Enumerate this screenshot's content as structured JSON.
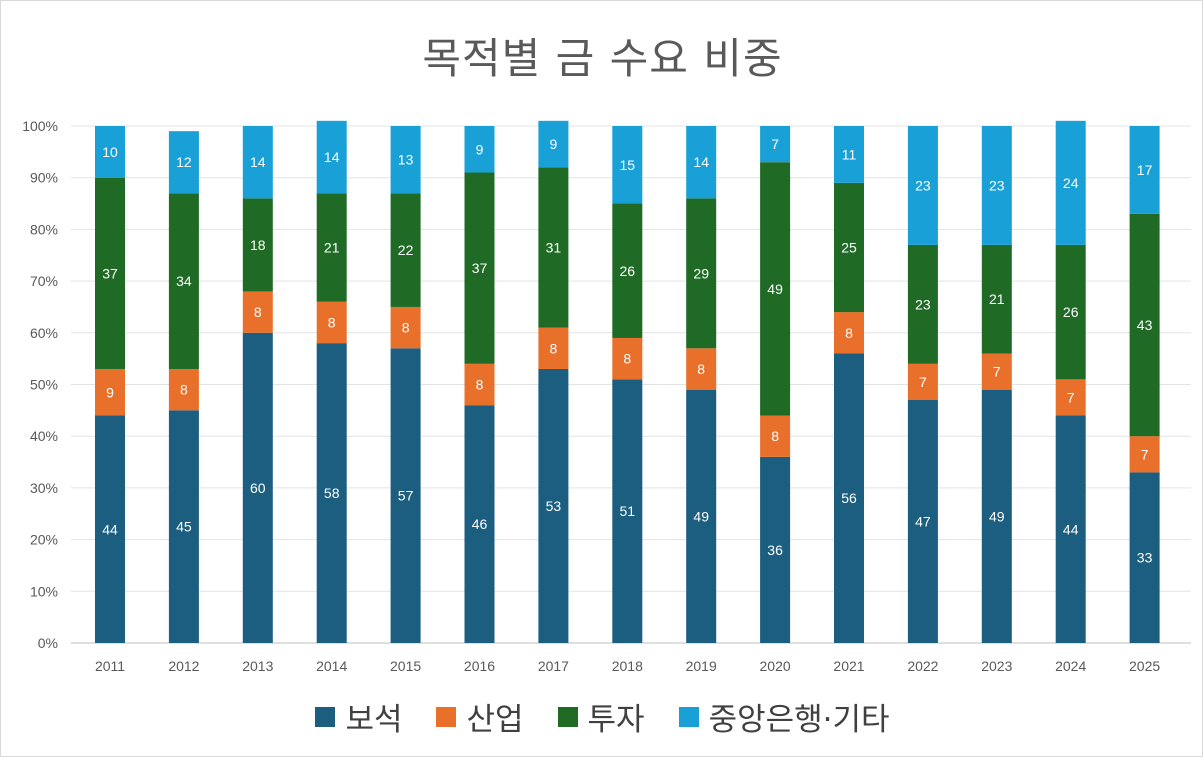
{
  "chart_data": {
    "type": "bar",
    "stacked": true,
    "title": "목적별 금 수요 비중",
    "xlabel": "",
    "ylabel": "",
    "ylim": [
      0,
      100
    ],
    "y_ticks": [
      "0%",
      "10%",
      "20%",
      "30%",
      "40%",
      "50%",
      "60%",
      "70%",
      "80%",
      "90%",
      "100%"
    ],
    "grid": true,
    "legend_position": "bottom",
    "categories": [
      "2011",
      "2012",
      "2013",
      "2014",
      "2015",
      "2016",
      "2017",
      "2018",
      "2019",
      "2020",
      "2021",
      "2022",
      "2023",
      "2024",
      "2025"
    ],
    "series": [
      {
        "name": "보석",
        "color": "#1b5e80",
        "values": [
          44,
          45,
          60,
          58,
          57,
          46,
          53,
          51,
          49,
          36,
          56,
          47,
          49,
          44,
          33
        ]
      },
      {
        "name": "산업",
        "color": "#e8702a",
        "values": [
          9,
          8,
          8,
          8,
          8,
          8,
          8,
          8,
          8,
          8,
          8,
          7,
          7,
          7,
          7
        ]
      },
      {
        "name": "투자",
        "color": "#1f6b26",
        "values": [
          37,
          34,
          18,
          21,
          22,
          37,
          31,
          26,
          29,
          49,
          25,
          23,
          21,
          26,
          43
        ]
      },
      {
        "name": "중앙은행·기타",
        "color": "#18a0d7",
        "values": [
          10,
          12,
          14,
          14,
          13,
          9,
          9,
          15,
          14,
          7,
          11,
          23,
          23,
          24,
          17
        ]
      }
    ]
  }
}
